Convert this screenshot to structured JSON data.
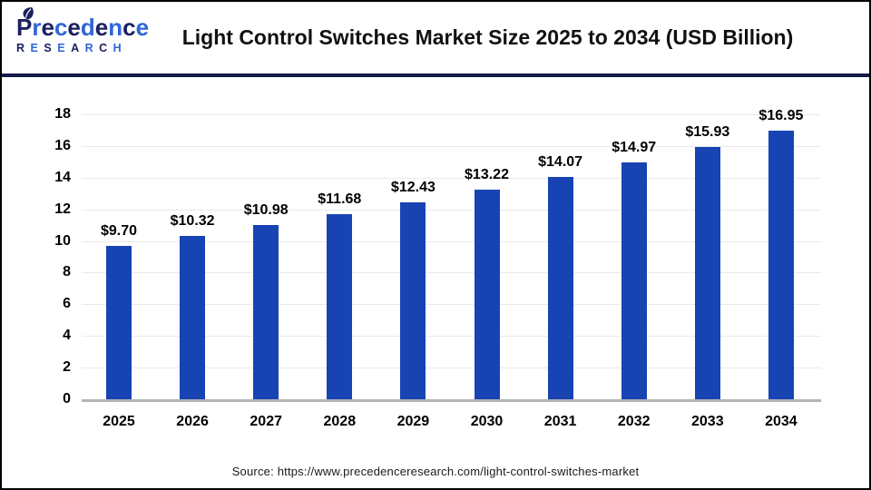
{
  "header": {
    "logo": {
      "name": "Precedence",
      "subtitle": "RESEARCH"
    },
    "title": "Light Control Switches Market Size 2025 to 2034 (USD Billion)"
  },
  "chart_data": {
    "type": "bar",
    "title": "Light Control Switches Market Size 2025 to 2034 (USD Billion)",
    "categories": [
      "2025",
      "2026",
      "2027",
      "2028",
      "2029",
      "2030",
      "2031",
      "2032",
      "2033",
      "2034"
    ],
    "values": [
      9.7,
      10.32,
      10.98,
      11.68,
      12.43,
      13.22,
      14.07,
      14.97,
      15.93,
      16.95
    ],
    "value_labels": [
      "$9.70",
      "$10.32",
      "$10.98",
      "$11.68",
      "$12.43",
      "$13.22",
      "$14.07",
      "$14.97",
      "$15.93",
      "$16.95"
    ],
    "xlabel": "",
    "ylabel": "",
    "ylim": [
      0,
      18
    ],
    "ytick_step": 2,
    "grid": true,
    "legend_position": "none",
    "bar_color": "#1843b3"
  },
  "footer": {
    "source": "Source: https://www.precedenceresearch.com/light-control-switches-market"
  },
  "colors": {
    "brand_navy": "#1b2160",
    "brand_blue": "#2f66d8",
    "divider_navy": "#141a45",
    "bar_blue": "#1843b3",
    "gridline_gray": "#e9e9e9",
    "axis_gray": "#b3b3b3"
  }
}
